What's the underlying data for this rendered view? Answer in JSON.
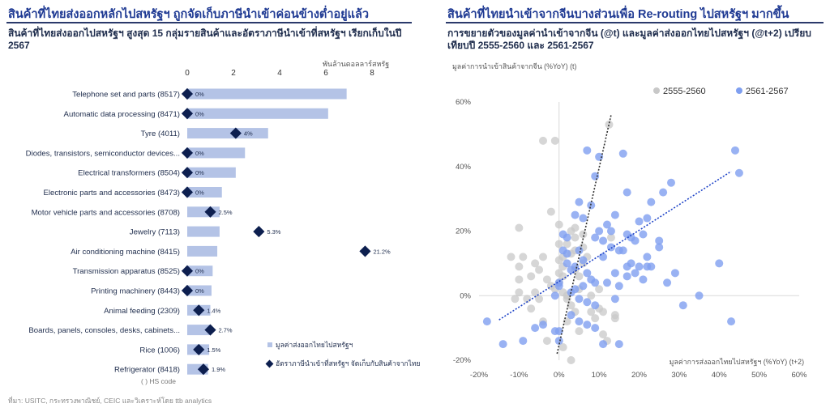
{
  "left": {
    "title": "สินค้าที่ไทยส่งออกหลักไปสหรัฐฯ ถูกจัดเก็บภาษีนำเข้าค่อนข้างต่ำอยู่แล้ว",
    "subtitle": "สินค้าที่ไทยส่งออกไปสหรัฐฯ สูงสุด 15 กลุ่มรายสินค้าและอัตราภาษีนำเข้าที่สหรัฐฯ เรียกเก็บในปี 2567",
    "unit": "พันล้านดอลลาร์สหรัฐ",
    "footnote": "( ) HS code",
    "source": "ที่มา: USITC, กระทรวงพาณิชย์, CEIC และวิเคราะห์โดย ttb analytics"
  },
  "right": {
    "title": "สินค้าที่ไทยนำเข้าจากจีนบางส่วนเพื่อ Re-routing ไปสหรัฐฯ มากขึ้น",
    "subtitle": "การขยายตัวของมูลค่านำเข้าจากจีน (@t) และมูลค่าส่งออกไทยไปสหรัฐฯ (@t+2) เปรียบเทียบปี 2555-2560 และ 2561-2567"
  },
  "chart_data": [
    {
      "type": "bar",
      "title": "",
      "x_axis_label": "พันล้านดอลลาร์สหรัฐ",
      "xlim": [
        0,
        8
      ],
      "x_ticks": [
        0,
        2,
        4,
        6,
        8
      ],
      "categories": [
        "Telephone set and parts (8517)",
        "Automatic data processing (8471)",
        "Tyre (4011)",
        "Diodes, transistors, semiconductor devices...",
        "Electrical transformers (8504)",
        "Electronic parts and accessories (8473)",
        "Motor vehicle parts and accessories (8708)",
        "Jewelry (7113)",
        "Air conditioning machine (8415)",
        "Transmission apparatus (8525)",
        "Printing machinery (8443)",
        "Animal feeding (2309)",
        "Boards, panels, consoles, desks, cabinets...",
        "Rice (1006)",
        "Refrigerator (8418)"
      ],
      "series": [
        {
          "name": "มูลค่าส่งออกไทยไปสหรัฐฯ",
          "kind": "bar",
          "color": "#b4c3e6",
          "values": [
            6.9,
            6.1,
            3.5,
            2.5,
            2.1,
            1.5,
            1.4,
            1.4,
            1.3,
            1.1,
            1.05,
            1.0,
            1.0,
            0.95,
            0.9
          ]
        },
        {
          "name": "อัตราภาษีนำเข้าที่สหรัฐฯ จัดเก็บกับสินค้าจากไทย",
          "kind": "marker",
          "color": "#0d1f4f",
          "positions": [
            0,
            0,
            2.1,
            0,
            0,
            0,
            1.0,
            3.1,
            7.7,
            0,
            0,
            0.5,
            1.0,
            0.5,
            0.7
          ],
          "labels": [
            "0%",
            "0%",
            "4%",
            "0%",
            "0%",
            "0%",
            "2.5%",
            "5.3%",
            "21.2%",
            "0%",
            "0%",
            "1.4%",
            "2.7%",
            "1.5%",
            "1.9%"
          ]
        }
      ]
    },
    {
      "type": "scatter",
      "title": "",
      "xlabel": "มูลค่าการส่งออกไทยไปสหรัฐฯ (%YoY) (t+2)",
      "ylabel": "มูลค่าการนำเข้าสินค้าจากจีน (%YoY) (t)",
      "xlim": [
        -20,
        60
      ],
      "ylim": [
        -20,
        60
      ],
      "x_ticks": [
        -20,
        -10,
        0,
        10,
        20,
        30,
        40,
        50,
        60
      ],
      "y_ticks": [
        -20,
        0,
        20,
        40,
        60
      ],
      "x_tick_labels": [
        "-20%",
        "-10%",
        "0%",
        "10%",
        "20%",
        "30%",
        "40%",
        "50%",
        "60%"
      ],
      "y_tick_labels": [
        "-20%",
        "0%",
        "20%",
        "40%",
        "60%"
      ],
      "legend_position": "top-right",
      "series": [
        {
          "name": "2555-2560",
          "color": "#c8c8c8",
          "trend_line": [
            [
              -0.5,
              -18
            ],
            [
              13,
              56
            ]
          ],
          "points": [
            [
              12.5,
              53
            ],
            [
              -4,
              48
            ],
            [
              -1,
              48
            ],
            [
              -10,
              21
            ],
            [
              -9,
              12
            ],
            [
              -10,
              9
            ],
            [
              -7,
              6
            ],
            [
              -6,
              10
            ],
            [
              -5,
              8
            ],
            [
              -4,
              12
            ],
            [
              -3,
              5
            ],
            [
              -2,
              3
            ],
            [
              0,
              22
            ],
            [
              0,
              16
            ],
            [
              1,
              12
            ],
            [
              1,
              9
            ],
            [
              0,
              7
            ],
            [
              0,
              4
            ],
            [
              -1,
              2
            ],
            [
              1,
              1
            ],
            [
              2,
              -1
            ],
            [
              2,
              16
            ],
            [
              3,
              13
            ],
            [
              3,
              20
            ],
            [
              4,
              21
            ],
            [
              4,
              18
            ],
            [
              4,
              14
            ],
            [
              4,
              8
            ],
            [
              5,
              6
            ],
            [
              5,
              2
            ],
            [
              6,
              10
            ],
            [
              6,
              15
            ],
            [
              6,
              19
            ],
            [
              7,
              12
            ],
            [
              8,
              0
            ],
            [
              8,
              -5
            ],
            [
              9,
              -7
            ],
            [
              10,
              -4
            ],
            [
              10,
              2
            ],
            [
              11,
              -5
            ],
            [
              11,
              -12
            ],
            [
              12,
              -14
            ],
            [
              3,
              -20
            ],
            [
              -3,
              -14
            ],
            [
              -4,
              -8
            ],
            [
              -5,
              -1
            ],
            [
              -6,
              1
            ],
            [
              -7,
              -4
            ],
            [
              -8,
              -1
            ],
            [
              -10,
              5
            ],
            [
              -10,
              1
            ],
            [
              -11,
              -1
            ],
            [
              2,
              -8
            ],
            [
              3,
              -3
            ],
            [
              4,
              -5
            ],
            [
              5,
              -11
            ],
            [
              1,
              -16
            ],
            [
              14,
              -6
            ],
            [
              14,
              -7
            ],
            [
              13,
              18
            ],
            [
              -2,
              26
            ],
            [
              0,
              11
            ],
            [
              1,
              6
            ],
            [
              2,
              0
            ],
            [
              -12,
              12
            ]
          ]
        },
        {
          "name": "2561-2567",
          "color": "#7f9ff0",
          "trend_line": [
            [
              -15,
              -7.5
            ],
            [
              43,
              38.5
            ]
          ],
          "points": [
            [
              7,
              45
            ],
            [
              10,
              43
            ],
            [
              16,
              44
            ],
            [
              9,
              37
            ],
            [
              44,
              45
            ],
            [
              45,
              38
            ],
            [
              28,
              35
            ],
            [
              26,
              32
            ],
            [
              17,
              32
            ],
            [
              20,
              23
            ],
            [
              21,
              19
            ],
            [
              23,
              29
            ],
            [
              14,
              25
            ],
            [
              12,
              22
            ],
            [
              4,
              25
            ],
            [
              5,
              29
            ],
            [
              10,
              20
            ],
            [
              13,
              20
            ],
            [
              9,
              18
            ],
            [
              11,
              17
            ],
            [
              13,
              15
            ],
            [
              15,
              14
            ],
            [
              17,
              19
            ],
            [
              19,
              17
            ],
            [
              25,
              17
            ],
            [
              25,
              15
            ],
            [
              22,
              12
            ],
            [
              22,
              9
            ],
            [
              20,
              9
            ],
            [
              18,
              10
            ],
            [
              17,
              9
            ],
            [
              17,
              6
            ],
            [
              19,
              7
            ],
            [
              21,
              5
            ],
            [
              23,
              9
            ],
            [
              27,
              4
            ],
            [
              29,
              7
            ],
            [
              40,
              10
            ],
            [
              35,
              0
            ],
            [
              31,
              -3
            ],
            [
              43,
              -8
            ],
            [
              6,
              24
            ],
            [
              2,
              18
            ],
            [
              1,
              14
            ],
            [
              2,
              10
            ],
            [
              4,
              9
            ],
            [
              6,
              11
            ],
            [
              7,
              7
            ],
            [
              8,
              5
            ],
            [
              9,
              4
            ],
            [
              6,
              3
            ],
            [
              4,
              2
            ],
            [
              3,
              1
            ],
            [
              5,
              -1
            ],
            [
              7,
              -2
            ],
            [
              9,
              -3
            ],
            [
              3,
              -6
            ],
            [
              5,
              -8
            ],
            [
              7,
              -9
            ],
            [
              9,
              -10
            ],
            [
              11,
              -15
            ],
            [
              15,
              -15
            ],
            [
              -4,
              -9
            ],
            [
              -6,
              -10
            ],
            [
              -9,
              -14
            ],
            [
              -14,
              -15
            ],
            [
              -18,
              -8
            ],
            [
              0,
              -11
            ],
            [
              0,
              -14
            ],
            [
              -1,
              -11
            ],
            [
              1,
              19
            ],
            [
              2,
              13
            ],
            [
              0,
              4
            ],
            [
              -1,
              0
            ],
            [
              14,
              -1
            ],
            [
              15,
              3
            ],
            [
              12,
              4
            ],
            [
              14,
              7
            ],
            [
              16,
              14
            ],
            [
              18,
              18
            ],
            [
              22,
              24
            ],
            [
              8,
              28
            ],
            [
              11,
              12
            ],
            [
              3,
              8
            ],
            [
              5,
              14
            ],
            [
              0,
              3
            ]
          ]
        }
      ]
    }
  ]
}
